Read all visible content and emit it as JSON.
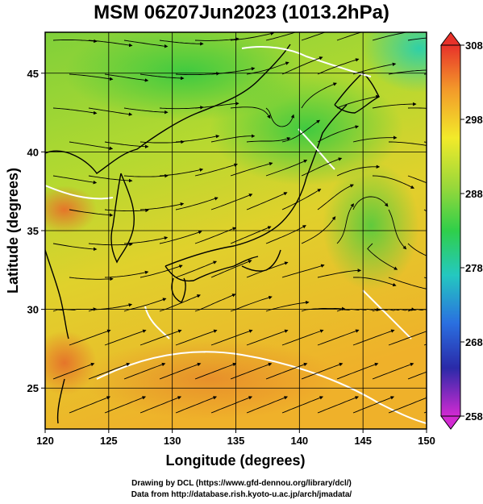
{
  "title": "MSM 06Z07Jun2023 (1013.2hPa)",
  "axes": {
    "xlabel": "Longitude (degrees)",
    "ylabel": "Latitude  (degrees)",
    "x_ticks": [
      "120",
      "125",
      "130",
      "135",
      "140",
      "145",
      "150"
    ],
    "y_ticks": [
      "25",
      "30",
      "35",
      "40",
      "45"
    ],
    "xlim": [
      120,
      150
    ],
    "ylim": [
      22.4,
      47.6
    ]
  },
  "colorbar": {
    "ticks": [
      "308",
      "298",
      "288",
      "278",
      "268",
      "258"
    ],
    "min": 258,
    "max": 308,
    "orientation": "vertical",
    "placement": "right"
  },
  "credits": {
    "line1": "Drawing by DCL (https://www.gfd-dennou.org/library/dcl/)",
    "line2": "Data from http://database.rish.kyoto-u.ac.jp/arch/jmadata/"
  }
}
